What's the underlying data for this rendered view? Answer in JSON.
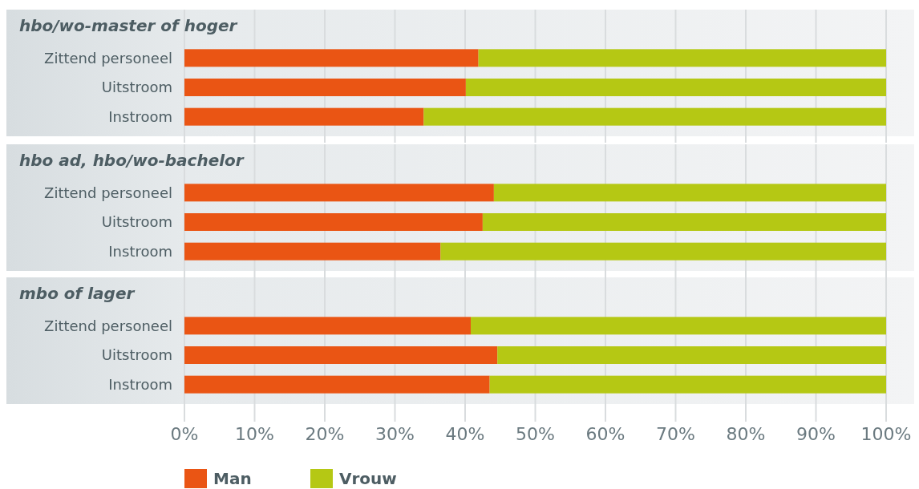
{
  "chart_data": [
    {
      "type": "bar",
      "title": "hbo/wo-master of hoger",
      "orientation": "horizontal",
      "stacked": true,
      "categories": [
        "Zittend personeel",
        "Uitstroom",
        "Instroom"
      ],
      "series": [
        {
          "color": "#ea5514",
          "values": [
            41.9,
            40.1,
            34.1
          ]
        },
        {
          "color": "#b5c814",
          "values": [
            58.1,
            59.9,
            65.9
          ]
        }
      ],
      "xlim": [
        0,
        100
      ],
      "xticks": [
        {
          "value": 0,
          "label": null
        },
        {
          "value": 10,
          "label": null
        },
        {
          "value": 20,
          "label": null
        },
        {
          "value": 30,
          "label": null
        },
        {
          "value": 40,
          "label": null
        },
        {
          "value": 50,
          "label": null
        },
        {
          "value": 60,
          "label": null
        },
        {
          "value": 70,
          "label": null
        },
        {
          "value": 80,
          "label": null
        },
        {
          "value": 90,
          "label": null
        },
        {
          "value": 100,
          "label": null
        }
      ],
      "grid": "x",
      "tick_labels": "y"
    },
    {
      "type": "bar",
      "title": "hbo ad, hbo/wo-bachelor",
      "orientation": "horizontal",
      "stacked": true,
      "categories": [
        "Zittend personeel",
        "Uitstroom",
        "Instroom"
      ],
      "series": [
        {
          "color": "#ea5514",
          "values": [
            44.1,
            42.5,
            36.5
          ]
        },
        {
          "color": "#b5c814",
          "values": [
            55.9,
            57.5,
            63.5
          ]
        }
      ],
      "xlim": [
        0,
        100
      ],
      "xticks": [
        {
          "value": 0,
          "label": null
        },
        {
          "value": 10,
          "label": null
        },
        {
          "value": 20,
          "label": null
        },
        {
          "value": 30,
          "label": null
        },
        {
          "value": 40,
          "label": null
        },
        {
          "value": 50,
          "label": null
        },
        {
          "value": 60,
          "label": null
        },
        {
          "value": 70,
          "label": null
        },
        {
          "value": 80,
          "label": null
        },
        {
          "value": 90,
          "label": null
        },
        {
          "value": 100,
          "label": null
        }
      ],
      "grid": "x",
      "tick_labels": "y"
    },
    {
      "type": "bar",
      "title": "mbo of lager",
      "orientation": "horizontal",
      "stacked": true,
      "categories": [
        "Zittend personeel",
        "Uitstroom",
        "Instroom"
      ],
      "series": [
        {
          "name": "Man",
          "color": "#ea5514",
          "values": [
            40.8,
            44.6,
            43.5
          ]
        },
        {
          "name": "Vrouw",
          "color": "#b5c814",
          "values": [
            59.2,
            55.4,
            56.5
          ]
        }
      ],
      "xlim": [
        0,
        100
      ],
      "xticks": [
        {
          "value": 0,
          "label": "0%"
        },
        {
          "value": 10,
          "label": "10%"
        },
        {
          "value": 20,
          "label": "20%"
        },
        {
          "value": 30,
          "label": "30%"
        },
        {
          "value": 40,
          "label": "40%"
        },
        {
          "value": 50,
          "label": "50%"
        },
        {
          "value": 60,
          "label": "60%"
        },
        {
          "value": 70,
          "label": "70%"
        },
        {
          "value": 80,
          "label": "80%"
        },
        {
          "value": 90,
          "label": "90%"
        },
        {
          "value": 100,
          "label": "100%"
        }
      ],
      "grid": "x",
      "legend": "bottom left"
    }
  ]
}
